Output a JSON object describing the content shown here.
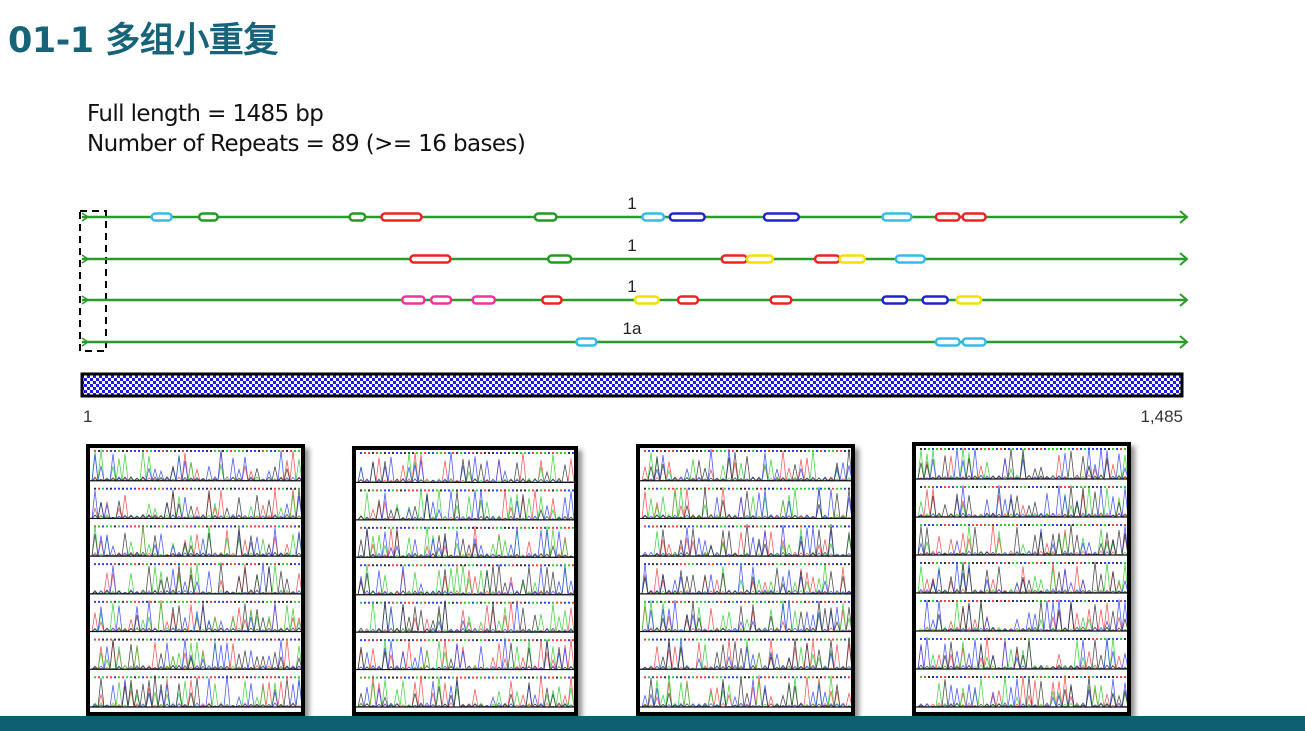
{
  "title": "01-1 多组小重复",
  "info": {
    "full_length": "Full length = 1485 bp",
    "repeats": "Number of Repeats = 89  (>= 16 bases)"
  },
  "sequence": {
    "start_label": "1",
    "end_label": "1,485",
    "length_bp": 1485
  },
  "colors": {
    "cyan": "#33bbee",
    "green": "#229922",
    "red": "#ee2222",
    "blue": "#2222cc",
    "yellow": "#f2e000",
    "pink": "#ee3399",
    "track": "#2a9a2a",
    "title": "#16637a",
    "footer": "#0e5f72"
  },
  "tracks": [
    {
      "label": "1",
      "segments": [
        [
          "cyan",
          95,
          122
        ],
        [
          "green",
          159,
          184
        ],
        [
          "green",
          362,
          383
        ],
        [
          "red",
          405,
          459
        ],
        [
          "green",
          612,
          641
        ],
        [
          "cyan",
          757,
          786
        ],
        [
          "blue",
          794,
          841
        ],
        [
          "blue",
          921,
          968
        ],
        [
          "cyan",
          1081,
          1120
        ],
        [
          "red",
          1153,
          1185
        ],
        [
          "red",
          1189,
          1220
        ]
      ]
    },
    {
      "label": "1",
      "segments": [
        [
          "red",
          444,
          498
        ],
        [
          "green",
          630,
          661
        ],
        [
          "red",
          864,
          898
        ],
        [
          "yellow",
          898,
          933
        ],
        [
          "red",
          990,
          1023
        ],
        [
          "yellow",
          1023,
          1057
        ],
        [
          "cyan",
          1099,
          1138
        ]
      ]
    },
    {
      "label": "1",
      "segments": [
        [
          "pink",
          433,
          463
        ],
        [
          "pink",
          472,
          499
        ],
        [
          "pink",
          528,
          558
        ],
        [
          "red",
          622,
          648
        ],
        [
          "yellow",
          747,
          779
        ],
        [
          "red",
          805,
          832
        ],
        [
          "red",
          930,
          958
        ],
        [
          "blue",
          1081,
          1114
        ],
        [
          "blue",
          1135,
          1169
        ],
        [
          "yellow",
          1181,
          1214
        ]
      ]
    },
    {
      "label": "1a",
      "segments": [
        [
          "cyan",
          668,
          695
        ],
        [
          "cyan",
          1153,
          1185
        ],
        [
          "cyan",
          1189,
          1220
        ]
      ]
    }
  ],
  "chromatograms": [
    {
      "rows": 7
    },
    {
      "rows": 7
    },
    {
      "rows": 7
    },
    {
      "rows": 7
    }
  ]
}
